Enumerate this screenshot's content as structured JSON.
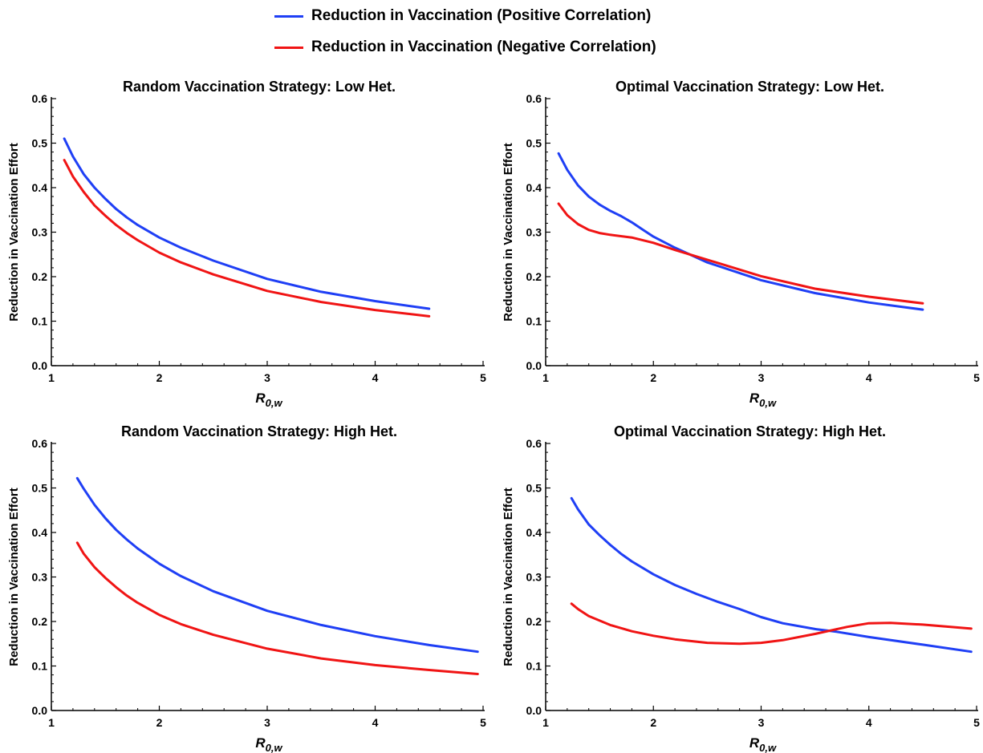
{
  "legend": {
    "items": [
      {
        "label": "Reduction in Vaccination (Positive Correlation)",
        "color": "#1f3ff5"
      },
      {
        "label": "Reduction in Vaccination (Negative Correlation)",
        "color": "#f01414"
      }
    ]
  },
  "chart_data": [
    {
      "type": "line",
      "title": "Random Vaccination Strategy: Low Het.",
      "xlabel": "R",
      "xlabel_sub": "0,w",
      "ylabel": "Reduction in Vaccination Effort",
      "xlim": [
        1,
        5
      ],
      "ylim": [
        0,
        0.6
      ],
      "xticks": [
        "1",
        "2",
        "3",
        "4",
        "5"
      ],
      "yticks": [
        "0.0",
        "0.1",
        "0.2",
        "0.3",
        "0.4",
        "0.5",
        "0.6"
      ],
      "series": [
        {
          "name": "Reduction in Vaccination (Positive Correlation)",
          "color": "#1f3ff5",
          "x": [
            1.12,
            1.2,
            1.3,
            1.4,
            1.5,
            1.6,
            1.7,
            1.8,
            2.0,
            2.2,
            2.5,
            3.0,
            3.5,
            4.0,
            4.5
          ],
          "y": [
            0.51,
            0.47,
            0.43,
            0.4,
            0.375,
            0.352,
            0.333,
            0.316,
            0.288,
            0.265,
            0.236,
            0.195,
            0.166,
            0.145,
            0.128
          ]
        },
        {
          "name": "Reduction in Vaccination (Negative Correlation)",
          "color": "#f01414",
          "x": [
            1.12,
            1.2,
            1.3,
            1.4,
            1.5,
            1.6,
            1.7,
            1.8,
            2.0,
            2.2,
            2.5,
            3.0,
            3.5,
            4.0,
            4.5
          ],
          "y": [
            0.462,
            0.425,
            0.39,
            0.36,
            0.337,
            0.316,
            0.298,
            0.282,
            0.254,
            0.232,
            0.205,
            0.168,
            0.143,
            0.125,
            0.111
          ]
        }
      ]
    },
    {
      "type": "line",
      "title": "Optimal Vaccination Strategy: Low Het.",
      "xlabel": "R",
      "xlabel_sub": "0,w",
      "ylabel": "Reduction in Vaccination Effort",
      "xlim": [
        1,
        5
      ],
      "ylim": [
        0,
        0.6
      ],
      "xticks": [
        "1",
        "2",
        "3",
        "4",
        "5"
      ],
      "yticks": [
        "0.0",
        "0.1",
        "0.2",
        "0.3",
        "0.4",
        "0.5",
        "0.6"
      ],
      "series": [
        {
          "name": "Reduction in Vaccination (Positive Correlation)",
          "color": "#1f3ff5",
          "x": [
            1.12,
            1.2,
            1.3,
            1.4,
            1.5,
            1.6,
            1.7,
            1.8,
            1.9,
            2.0,
            2.2,
            2.5,
            3.0,
            3.5,
            4.0,
            4.5
          ],
          "y": [
            0.477,
            0.44,
            0.405,
            0.38,
            0.362,
            0.348,
            0.336,
            0.322,
            0.306,
            0.29,
            0.265,
            0.232,
            0.192,
            0.163,
            0.142,
            0.126
          ]
        },
        {
          "name": "Reduction in Vaccination (Negative Correlation)",
          "color": "#f01414",
          "x": [
            1.12,
            1.2,
            1.3,
            1.4,
            1.5,
            1.6,
            1.8,
            2.0,
            2.2,
            2.5,
            3.0,
            3.5,
            4.0,
            4.5
          ],
          "y": [
            0.364,
            0.338,
            0.318,
            0.305,
            0.298,
            0.294,
            0.288,
            0.276,
            0.26,
            0.238,
            0.201,
            0.173,
            0.155,
            0.14
          ]
        }
      ]
    },
    {
      "type": "line",
      "title": "Random Vaccination Strategy: High Het.",
      "xlabel": "R",
      "xlabel_sub": "0,w",
      "ylabel": "Reduction in Vaccination Effort",
      "xlim": [
        1,
        5
      ],
      "ylim": [
        0,
        0.6
      ],
      "xticks": [
        "1",
        "2",
        "3",
        "4",
        "5"
      ],
      "yticks": [
        "0.0",
        "0.1",
        "0.2",
        "0.3",
        "0.4",
        "0.5",
        "0.6"
      ],
      "series": [
        {
          "name": "Reduction in Vaccination (Positive Correlation)",
          "color": "#1f3ff5",
          "x": [
            1.24,
            1.3,
            1.4,
            1.5,
            1.6,
            1.7,
            1.8,
            2.0,
            2.2,
            2.5,
            3.0,
            3.5,
            4.0,
            4.5,
            4.95
          ],
          "y": [
            0.522,
            0.498,
            0.462,
            0.432,
            0.406,
            0.384,
            0.364,
            0.33,
            0.302,
            0.268,
            0.224,
            0.192,
            0.167,
            0.147,
            0.132
          ]
        },
        {
          "name": "Reduction in Vaccination (Negative Correlation)",
          "color": "#f01414",
          "x": [
            1.24,
            1.3,
            1.4,
            1.5,
            1.6,
            1.7,
            1.8,
            2.0,
            2.2,
            2.5,
            3.0,
            3.5,
            4.0,
            4.5,
            4.95
          ],
          "y": [
            0.377,
            0.352,
            0.322,
            0.298,
            0.277,
            0.258,
            0.242,
            0.215,
            0.194,
            0.17,
            0.139,
            0.117,
            0.102,
            0.091,
            0.082
          ]
        }
      ]
    },
    {
      "type": "line",
      "title": "Optimal Vaccination Strategy: High Het.",
      "xlabel": "R",
      "xlabel_sub": "0,w",
      "ylabel": "Reduction in Vaccination Effort",
      "xlim": [
        1,
        5
      ],
      "ylim": [
        0,
        0.6
      ],
      "xticks": [
        "1",
        "2",
        "3",
        "4",
        "5"
      ],
      "yticks": [
        "0.0",
        "0.1",
        "0.2",
        "0.3",
        "0.4",
        "0.5",
        "0.6"
      ],
      "series": [
        {
          "name": "Reduction in Vaccination (Positive Correlation)",
          "color": "#1f3ff5",
          "x": [
            1.24,
            1.3,
            1.4,
            1.5,
            1.6,
            1.7,
            1.8,
            2.0,
            2.2,
            2.4,
            2.6,
            2.8,
            3.0,
            3.2,
            3.5,
            3.7,
            4.0,
            4.5,
            4.95
          ],
          "y": [
            0.477,
            0.452,
            0.418,
            0.394,
            0.372,
            0.352,
            0.335,
            0.306,
            0.282,
            0.262,
            0.244,
            0.228,
            0.21,
            0.196,
            0.183,
            0.177,
            0.165,
            0.148,
            0.132
          ]
        },
        {
          "name": "Reduction in Vaccination (Negative Correlation)",
          "color": "#f01414",
          "x": [
            1.24,
            1.3,
            1.4,
            1.6,
            1.8,
            2.0,
            2.2,
            2.5,
            2.8,
            3.0,
            3.2,
            3.5,
            3.8,
            4.0,
            4.2,
            4.5,
            4.95
          ],
          "y": [
            0.24,
            0.228,
            0.212,
            0.192,
            0.178,
            0.168,
            0.16,
            0.152,
            0.15,
            0.152,
            0.158,
            0.172,
            0.188,
            0.196,
            0.197,
            0.193,
            0.184
          ]
        }
      ]
    }
  ]
}
